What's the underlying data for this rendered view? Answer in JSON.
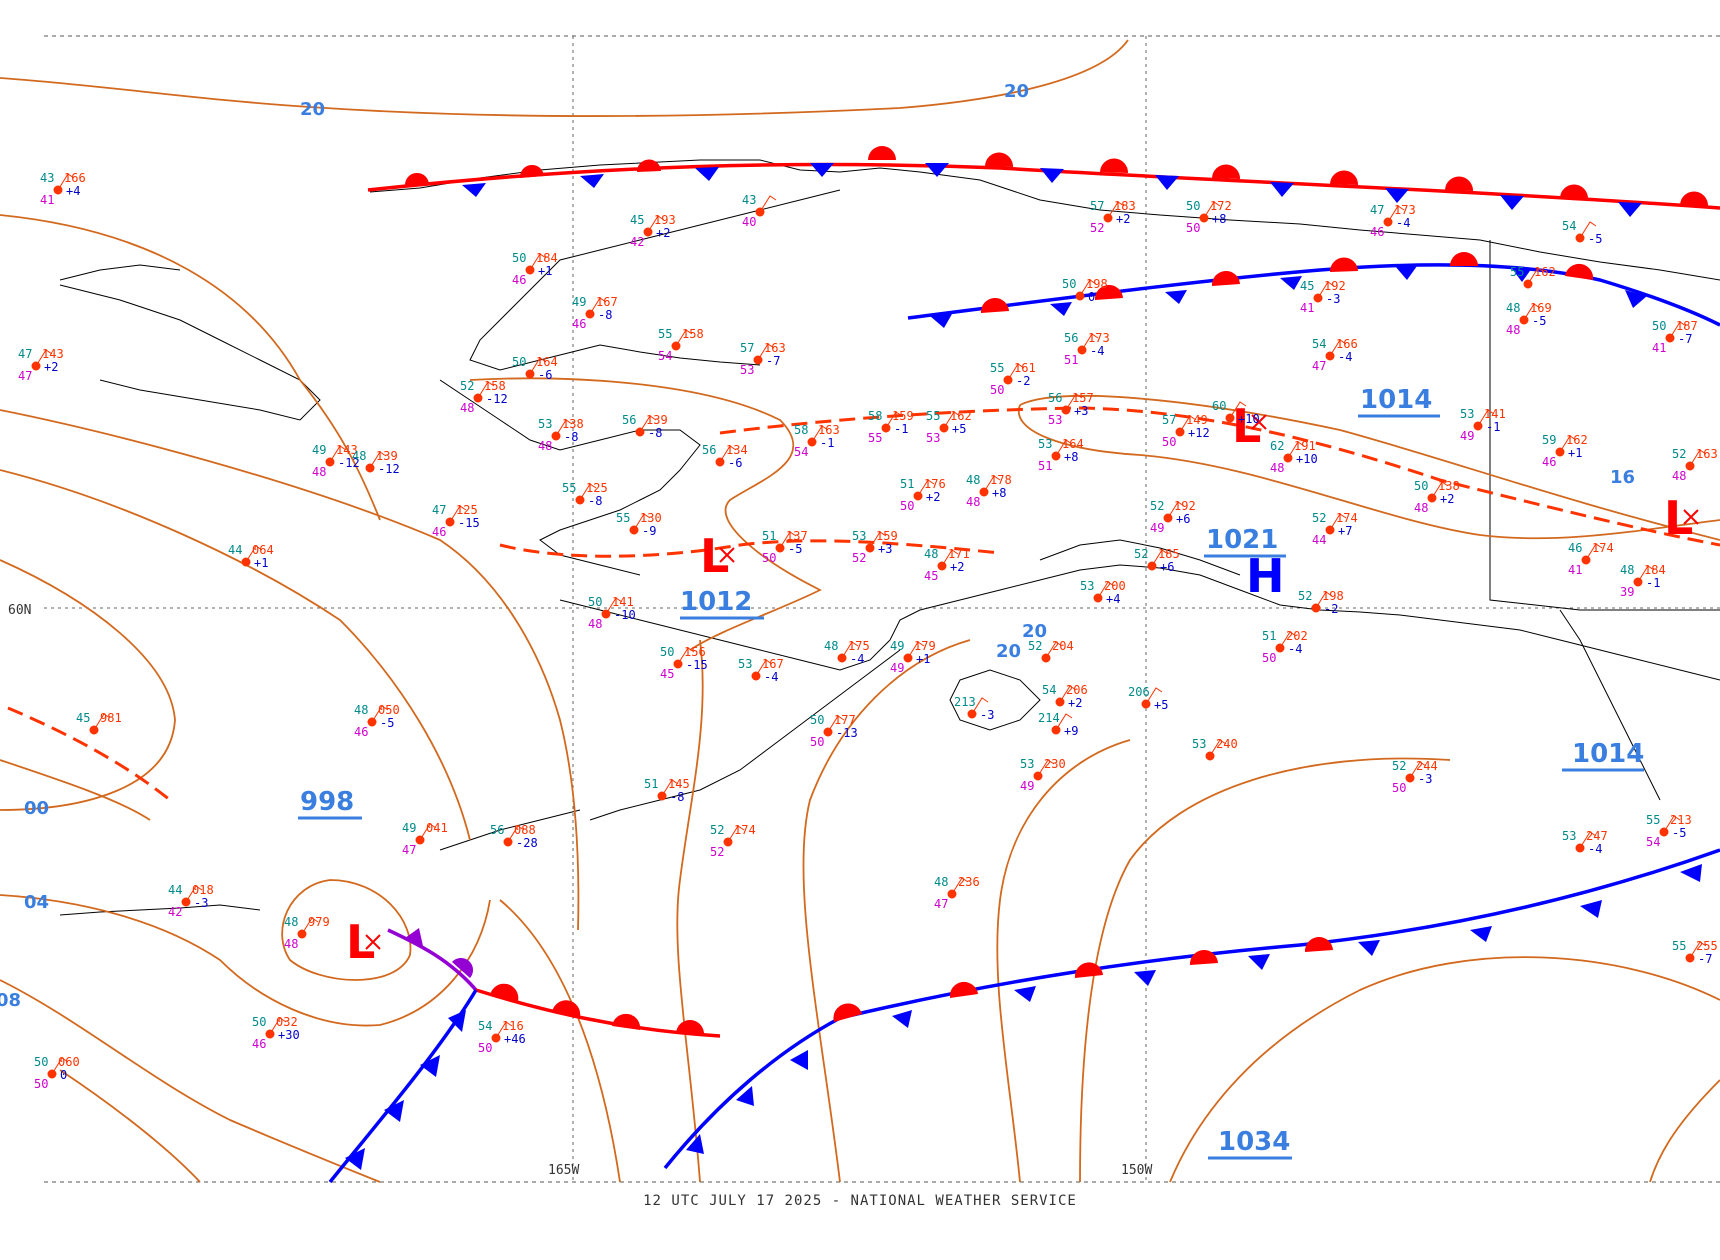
{
  "caption": "12 UTC JULY 17 2025 - NATIONAL WEATHER SERVICE",
  "longitude_labels": [
    "165W",
    "150W"
  ],
  "latitude_labels": [
    "60N"
  ],
  "colors": {
    "isobar": "#d2691e",
    "isobar_label": "#3a7fe0",
    "warm_front": "#ff0000",
    "cold_front": "#0000ff",
    "occluded_front": "#9400d3",
    "trough": "#ff3300",
    "low_center": "#ff0000",
    "high_center": "#0000ff",
    "temp": "#008b8b",
    "dewpoint": "#d000d0",
    "pressure_tend": "#0000cd",
    "coast": "#000000"
  },
  "pressure_labels": [
    "1012",
    "998",
    "1014",
    "1021",
    "1014",
    "1034"
  ],
  "isobar_short_labels": [
    "20",
    "20",
    "00",
    "04",
    "08",
    "16",
    "20",
    "20"
  ],
  "centers": [
    {
      "type": "L",
      "name": "low-north-gulf"
    },
    {
      "type": "L",
      "name": "low-bristol"
    },
    {
      "type": "L",
      "name": "low-aleutians"
    },
    {
      "type": "L",
      "name": "low-east"
    },
    {
      "type": "H",
      "name": "high-cook-inlet"
    }
  ],
  "stations": [
    {
      "t": "43",
      "p": "166",
      "d": "41",
      "tend": "+4"
    },
    {
      "t": "47",
      "p": "143",
      "d": "47",
      "tend": "+2"
    },
    {
      "t": "50",
      "p": "184",
      "d": "46",
      "tend": "+1"
    },
    {
      "t": "45",
      "p": "193",
      "d": "42",
      "tend": "+2"
    },
    {
      "t": "43",
      "p": "",
      "d": "40",
      "tend": ""
    },
    {
      "t": "49",
      "p": "167",
      "d": "46",
      "tend": "-8"
    },
    {
      "t": "55",
      "p": "158",
      "d": "54",
      "tend": ""
    },
    {
      "t": "57",
      "p": "163",
      "d": "53",
      "tend": "-7"
    },
    {
      "t": "50",
      "p": "164",
      "d": "",
      "tend": "-6"
    },
    {
      "t": "52",
      "p": "158",
      "d": "48",
      "tend": "-12"
    },
    {
      "t": "53",
      "p": "138",
      "d": "48",
      "tend": "-8"
    },
    {
      "t": "56",
      "p": "139",
      "d": "",
      "tend": "-8"
    },
    {
      "t": "49",
      "p": "143",
      "d": "48",
      "tend": "-12"
    },
    {
      "t": "48",
      "p": "139",
      "d": "",
      "tend": "-12"
    },
    {
      "t": "47",
      "p": "125",
      "d": "46",
      "tend": "-15"
    },
    {
      "t": "44",
      "p": "064",
      "d": "",
      "tend": "+1"
    },
    {
      "t": "55",
      "p": "125",
      "d": "",
      "tend": "-8"
    },
    {
      "t": "55",
      "p": "130",
      "d": "",
      "tend": "-9"
    },
    {
      "t": "56",
      "p": "134",
      "d": "",
      "tend": "-6"
    },
    {
      "t": "58",
      "p": "163",
      "d": "54",
      "tend": "-1"
    },
    {
      "t": "58",
      "p": "159",
      "d": "55",
      "tend": "-1"
    },
    {
      "t": "55",
      "p": "162",
      "d": "53",
      "tend": "+5"
    },
    {
      "t": "55",
      "p": "161",
      "d": "50",
      "tend": "-2"
    },
    {
      "t": "56",
      "p": "173",
      "d": "51",
      "tend": "-4"
    },
    {
      "t": "50",
      "p": "198",
      "d": "",
      "tend": "0"
    },
    {
      "t": "57",
      "p": "183",
      "d": "52",
      "tend": "+2"
    },
    {
      "t": "50",
      "p": "172",
      "d": "50",
      "tend": "+8"
    },
    {
      "t": "47",
      "p": "173",
      "d": "46",
      "tend": "-4"
    },
    {
      "t": "45",
      "p": "192",
      "d": "41",
      "tend": "-3"
    },
    {
      "t": "54",
      "p": "166",
      "d": "47",
      "tend": "-4"
    },
    {
      "t": "55",
      "p": "162",
      "d": "",
      "tend": ""
    },
    {
      "t": "54",
      "p": "",
      "d": "",
      "tend": "-5"
    },
    {
      "t": "48",
      "p": "169",
      "d": "48",
      "tend": "-5"
    },
    {
      "t": "50",
      "p": "187",
      "d": "41",
      "tend": "-7"
    },
    {
      "t": "56",
      "p": "157",
      "d": "53",
      "tend": "+3"
    },
    {
      "t": "57",
      "p": "149",
      "d": "50",
      "tend": "+12"
    },
    {
      "t": "60",
      "p": "",
      "d": "",
      "tend": "+10"
    },
    {
      "t": "62",
      "p": "191",
      "d": "48",
      "tend": "+10"
    },
    {
      "t": "53",
      "p": "141",
      "d": "49",
      "tend": "-1"
    },
    {
      "t": "59",
      "p": "162",
      "d": "46",
      "tend": "+1"
    },
    {
      "t": "52",
      "p": "163",
      "d": "48",
      "tend": ""
    },
    {
      "t": "53",
      "p": "164",
      "d": "51",
      "tend": "+8"
    },
    {
      "t": "51",
      "p": "176",
      "d": "50",
      "tend": "+2"
    },
    {
      "t": "48",
      "p": "178",
      "d": "48",
      "tend": "+8"
    },
    {
      "t": "50",
      "p": "138",
      "d": "48",
      "tend": "+2"
    },
    {
      "t": "52",
      "p": "192",
      "d": "49",
      "tend": "+6"
    },
    {
      "t": "52",
      "p": "174",
      "d": "44",
      "tend": "+7"
    },
    {
      "t": "51",
      "p": "137",
      "d": "50",
      "tend": "-5"
    },
    {
      "t": "53",
      "p": "159",
      "d": "52",
      "tend": "+3"
    },
    {
      "t": "48",
      "p": "171",
      "d": "45",
      "tend": "+2"
    },
    {
      "t": "50",
      "p": "141",
      "d": "48",
      "tend": "-10"
    },
    {
      "t": "50",
      "p": "156",
      "d": "45",
      "tend": "-15"
    },
    {
      "t": "53",
      "p": "167",
      "d": "",
      "tend": "-4"
    },
    {
      "t": "48",
      "p": "175",
      "d": "",
      "tend": "-4"
    },
    {
      "t": "49",
      "p": "179",
      "d": "49",
      "tend": "+1"
    },
    {
      "t": "45",
      "p": "981",
      "d": "",
      "tend": ""
    },
    {
      "t": "48",
      "p": "050",
      "d": "46",
      "tend": "-5"
    },
    {
      "t": "50",
      "p": "177",
      "d": "50",
      "tend": "-13"
    },
    {
      "t": "49",
      "p": "041",
      "d": "47",
      "tend": ""
    },
    {
      "t": "56",
      "p": "088",
      "d": "",
      "tend": "-28"
    },
    {
      "t": "51",
      "p": "145",
      "d": "",
      "tend": "-8"
    },
    {
      "t": "52",
      "p": "174",
      "d": "52",
      "tend": ""
    },
    {
      "t": "44",
      "p": "018",
      "d": "42",
      "tend": "-3"
    },
    {
      "t": "48",
      "p": "979",
      "d": "48",
      "tend": ""
    },
    {
      "t": "50",
      "p": "032",
      "d": "46",
      "tend": "+30"
    },
    {
      "t": "54",
      "p": "116",
      "d": "50",
      "tend": "+46"
    },
    {
      "t": "50",
      "p": "060",
      "d": "50",
      "tend": "0"
    },
    {
      "t": "48",
      "p": "236",
      "d": "47",
      "tend": ""
    },
    {
      "t": "53",
      "p": "230",
      "d": "49",
      "tend": ""
    },
    {
      "t": "53",
      "p": "240",
      "d": "",
      "tend": ""
    },
    {
      "t": "52",
      "p": "244",
      "d": "50",
      "tend": "-3"
    },
    {
      "t": "53",
      "p": "247",
      "d": "",
      "tend": "-4"
    },
    {
      "t": "55",
      "p": "213",
      "d": "54",
      "tend": "-5"
    },
    {
      "t": "55",
      "p": "255",
      "d": "",
      "tend": "-7"
    },
    {
      "t": "51",
      "p": "202",
      "d": "50",
      "tend": "-4"
    },
    {
      "t": "52",
      "p": "198",
      "d": "",
      "tend": "-2"
    },
    {
      "t": "46",
      "p": "174",
      "d": "41",
      "tend": ""
    },
    {
      "t": "48",
      "p": "184",
      "d": "39",
      "tend": "-1"
    },
    {
      "t": "52",
      "p": "185",
      "d": "",
      "tend": "+6"
    },
    {
      "t": "53",
      "p": "200",
      "d": "",
      "tend": "+4"
    },
    {
      "t": "52",
      "p": "204",
      "d": "",
      "tend": ""
    },
    {
      "t": "206",
      "p": "",
      "d": "",
      "tend": "+5"
    },
    {
      "t": "54",
      "p": "206",
      "d": "",
      "tend": "+2"
    },
    {
      "t": "214",
      "p": "",
      "d": "",
      "tend": "+9"
    },
    {
      "t": "213",
      "p": "",
      "d": "",
      "tend": "-3"
    }
  ]
}
